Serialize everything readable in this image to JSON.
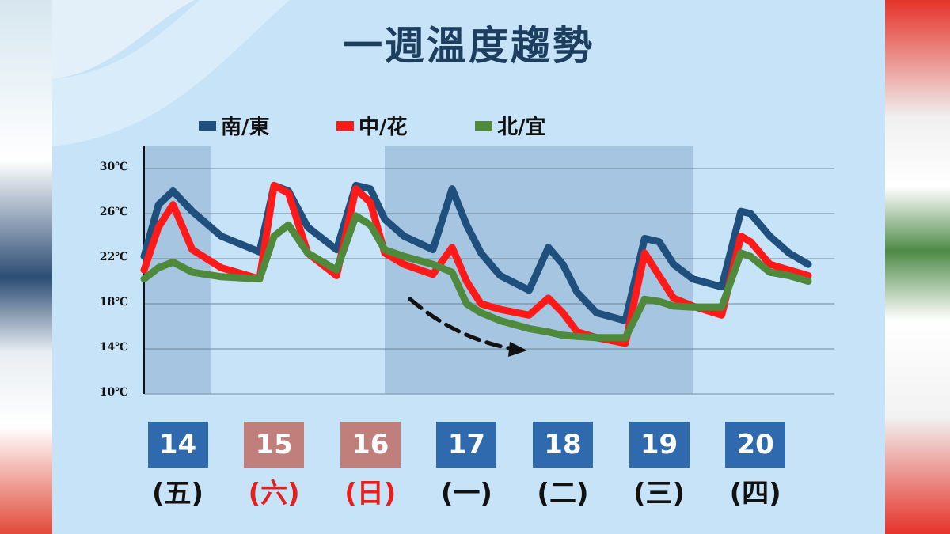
{
  "title": "一週溫度趨勢",
  "colors": {
    "south_east": "#1f4f7d",
    "central_hualien": "#ff1a1a",
    "north_yilan": "#4f8a3c",
    "weekday_box": "#2e6aad",
    "weekend_box": "#c17f7c",
    "weekend_text": "#e51e1e",
    "weekday_text": "#111111"
  },
  "chart_data": {
    "type": "line",
    "title": "一週溫度趨勢",
    "xlabel": "",
    "ylabel": "",
    "ylim": [
      10,
      30
    ],
    "yticks": [
      10,
      14,
      18,
      22,
      26,
      30
    ],
    "ytick_labels": [
      "10℃",
      "14℃",
      "18℃",
      "22℃",
      "26℃",
      "30℃"
    ],
    "grid": true,
    "legend_position": "top",
    "x_range": [
      0,
      7
    ],
    "shaded_spans": [
      [
        0,
        0.7
      ],
      [
        2.5,
        5.7
      ]
    ],
    "days": [
      {
        "date": "14",
        "weekday": "(五)",
        "weekend": false
      },
      {
        "date": "15",
        "weekday": "(六)",
        "weekend": true
      },
      {
        "date": "16",
        "weekday": "(日)",
        "weekend": true
      },
      {
        "date": "17",
        "weekday": "(一)",
        "weekend": false
      },
      {
        "date": "18",
        "weekday": "(二)",
        "weekend": false
      },
      {
        "date": "19",
        "weekday": "(三)",
        "weekend": false
      },
      {
        "date": "20",
        "weekday": "(四)",
        "weekend": false
      }
    ],
    "series": [
      {
        "name": "南/東",
        "color": "#1f4f7d",
        "x": [
          0,
          0.15,
          0.3,
          0.5,
          0.8,
          1.2,
          1.35,
          1.5,
          1.7,
          2.0,
          2.2,
          2.35,
          2.5,
          2.7,
          3.0,
          3.2,
          3.35,
          3.5,
          3.7,
          4.0,
          4.2,
          4.35,
          4.5,
          4.7,
          5.0,
          5.2,
          5.35,
          5.5,
          5.7,
          6.0,
          6.2,
          6.3,
          6.5,
          6.7,
          6.9
        ],
        "values": [
          22.2,
          26.8,
          28.0,
          26.2,
          24.0,
          22.6,
          28.5,
          28.0,
          24.8,
          22.8,
          28.5,
          28.2,
          25.5,
          24.0,
          22.8,
          28.2,
          25.0,
          22.5,
          20.5,
          19.2,
          23.0,
          21.5,
          19.0,
          17.2,
          16.5,
          23.8,
          23.5,
          21.5,
          20.2,
          19.5,
          26.2,
          26.0,
          24.0,
          22.5,
          21.5
        ]
      },
      {
        "name": "中/花",
        "color": "#ff1a1a",
        "x": [
          0,
          0.15,
          0.3,
          0.5,
          0.8,
          1.2,
          1.35,
          1.5,
          1.7,
          2.0,
          2.2,
          2.35,
          2.5,
          2.7,
          3.0,
          3.2,
          3.35,
          3.5,
          3.7,
          4.0,
          4.2,
          4.35,
          4.5,
          4.7,
          5.0,
          5.2,
          5.35,
          5.5,
          5.7,
          6.0,
          6.2,
          6.3,
          6.5,
          6.7,
          6.9
        ],
        "values": [
          21.0,
          24.8,
          26.8,
          22.8,
          21.2,
          20.2,
          28.5,
          27.8,
          22.5,
          20.5,
          28.2,
          27.0,
          22.5,
          21.5,
          20.6,
          23.0,
          20.0,
          18.0,
          17.5,
          17.0,
          18.5,
          17.2,
          15.5,
          15.0,
          14.5,
          22.5,
          20.5,
          18.5,
          17.8,
          17.0,
          24.0,
          23.5,
          21.5,
          21.0,
          20.5
        ]
      },
      {
        "name": "北/宜",
        "color": "#4f8a3c",
        "x": [
          0,
          0.15,
          0.3,
          0.5,
          0.8,
          1.2,
          1.35,
          1.5,
          1.7,
          2.0,
          2.2,
          2.35,
          2.5,
          2.7,
          3.0,
          3.2,
          3.35,
          3.5,
          3.7,
          4.0,
          4.2,
          4.35,
          4.5,
          4.7,
          5.0,
          5.2,
          5.35,
          5.5,
          5.7,
          6.0,
          6.2,
          6.3,
          6.5,
          6.7,
          6.9
        ],
        "values": [
          20.2,
          21.2,
          21.7,
          20.8,
          20.4,
          20.2,
          24.0,
          25.0,
          22.5,
          21.0,
          25.8,
          25.0,
          22.8,
          22.2,
          21.5,
          20.8,
          18.0,
          17.2,
          16.5,
          15.8,
          15.5,
          15.2,
          15.1,
          15.0,
          15.0,
          18.4,
          18.2,
          17.8,
          17.7,
          17.7,
          22.5,
          22.2,
          20.8,
          20.5,
          20.0
        ]
      }
    ]
  }
}
